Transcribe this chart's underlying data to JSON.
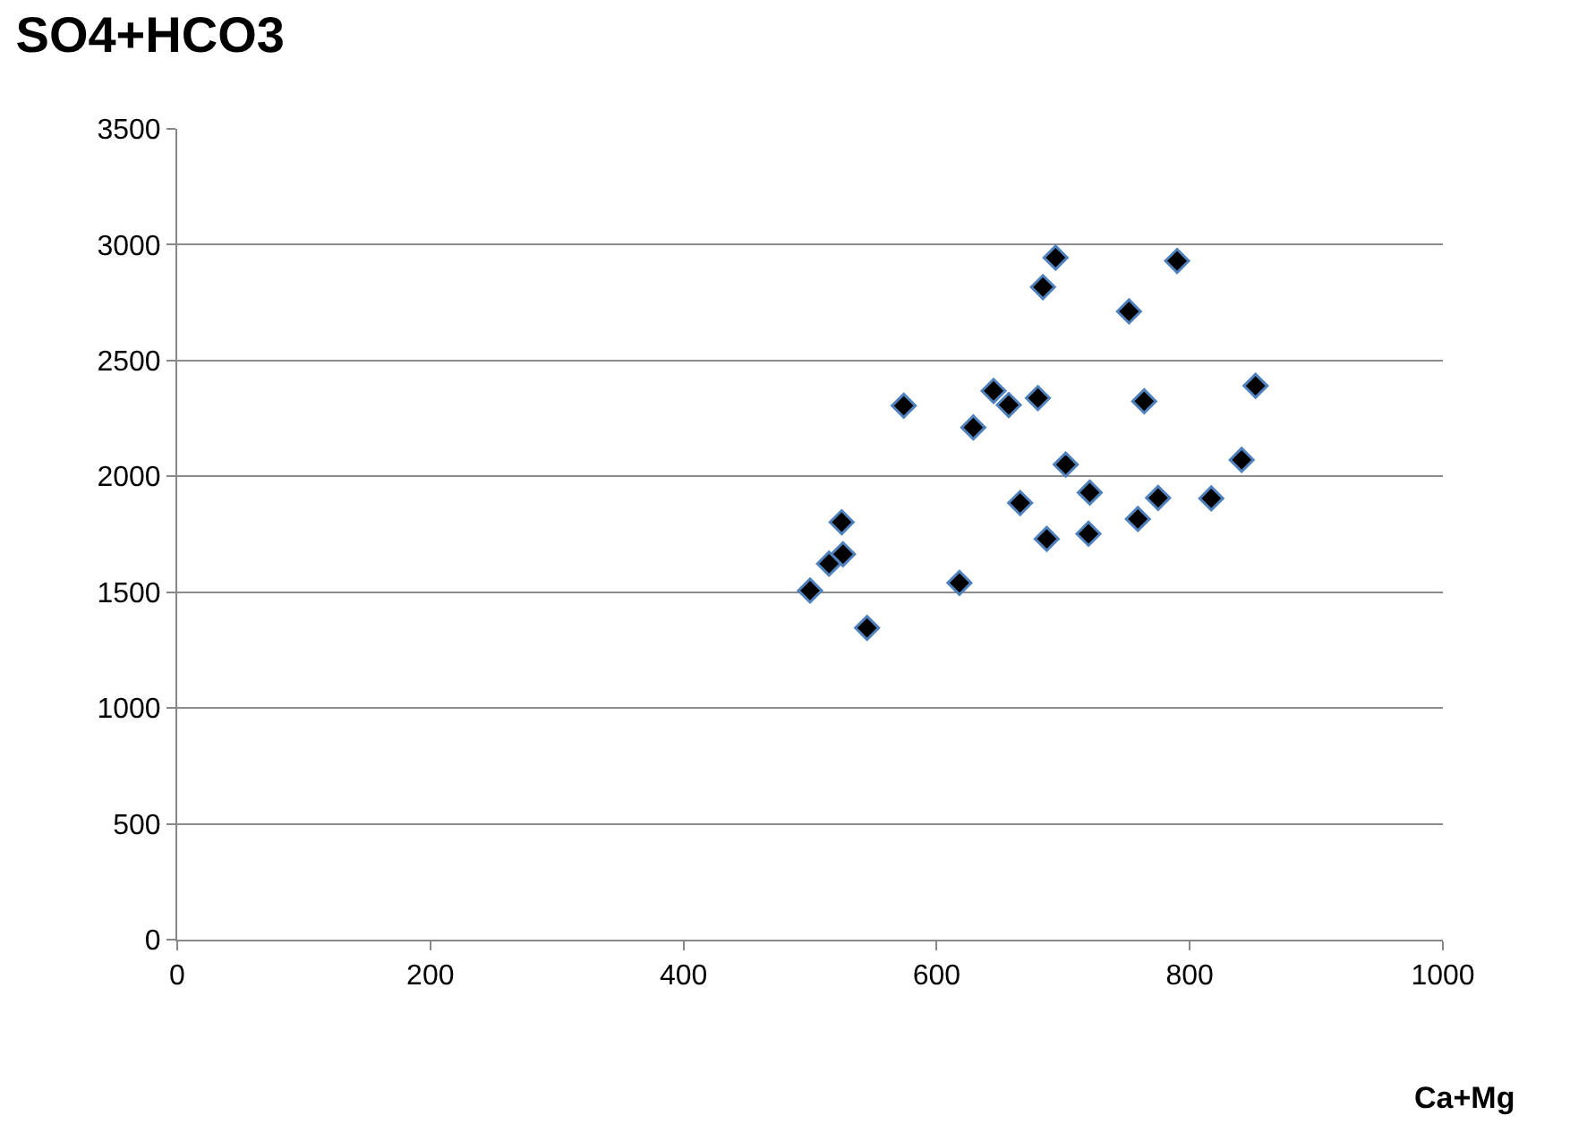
{
  "chart_data": {
    "type": "scatter",
    "title": "SO4+HCO3",
    "xlabel": "Ca+Mg",
    "x": [
      694,
      684,
      752,
      574,
      645,
      657,
      680,
      629,
      702,
      666,
      721,
      687,
      720,
      525,
      526,
      515,
      500,
      545,
      618,
      790,
      764,
      852,
      841,
      775,
      759,
      817
    ],
    "values": [
      2944,
      2817,
      2712,
      2305,
      2369,
      2308,
      2338,
      2211,
      2051,
      1885,
      1930,
      1730,
      1752,
      1802,
      1664,
      1623,
      1507,
      1346,
      1540,
      2930,
      2324,
      2391,
      2071,
      1907,
      1816,
      1905
    ],
    "color": "#000000",
    "marker": "diamond",
    "grid": "y",
    "xlim": [
      0,
      1000
    ],
    "xticks": [
      0,
      200,
      400,
      600,
      800,
      1000
    ],
    "ylim": [
      0,
      3500
    ],
    "yticks": [
      0,
      500,
      1000,
      1500,
      2000,
      2500,
      3000,
      3500
    ]
  }
}
